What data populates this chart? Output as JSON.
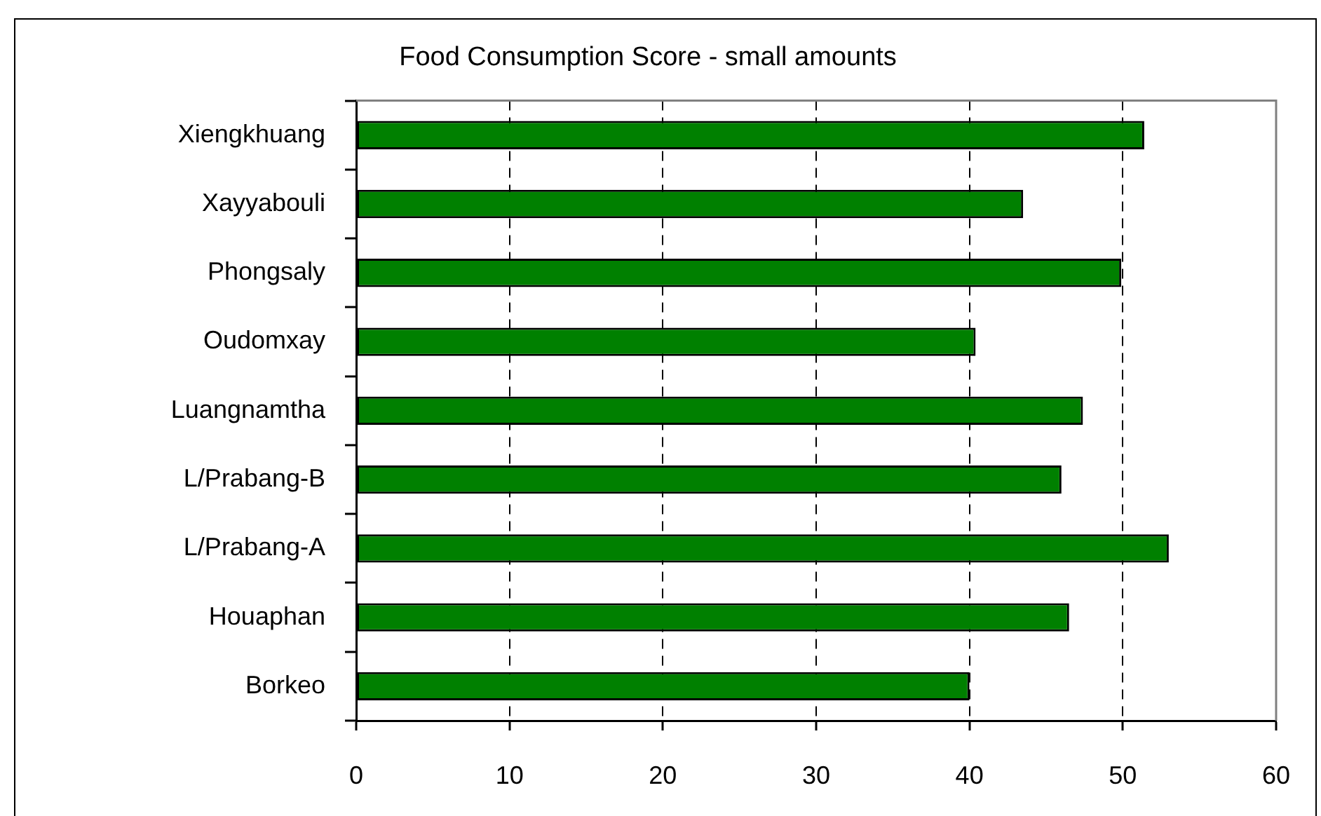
{
  "chart_data": {
    "type": "bar",
    "title": "Food Consumption Score - small amounts",
    "orientation": "horizontal",
    "categories": [
      "Xiengkhuang",
      "Xayyabouli",
      "Phongsaly",
      "Oudomxay",
      "Luangnamtha",
      "L/Prabang-B",
      "L/Prabang-A",
      "Houaphan",
      "Borkeo"
    ],
    "values": [
      51.4,
      43.5,
      49.9,
      40.4,
      47.4,
      46.0,
      53.0,
      46.5,
      40.0
    ],
    "color": "#008000",
    "xlim": [
      0,
      60
    ],
    "xticks": [
      0,
      10,
      20,
      30,
      40,
      50,
      60
    ],
    "grid": "x"
  }
}
